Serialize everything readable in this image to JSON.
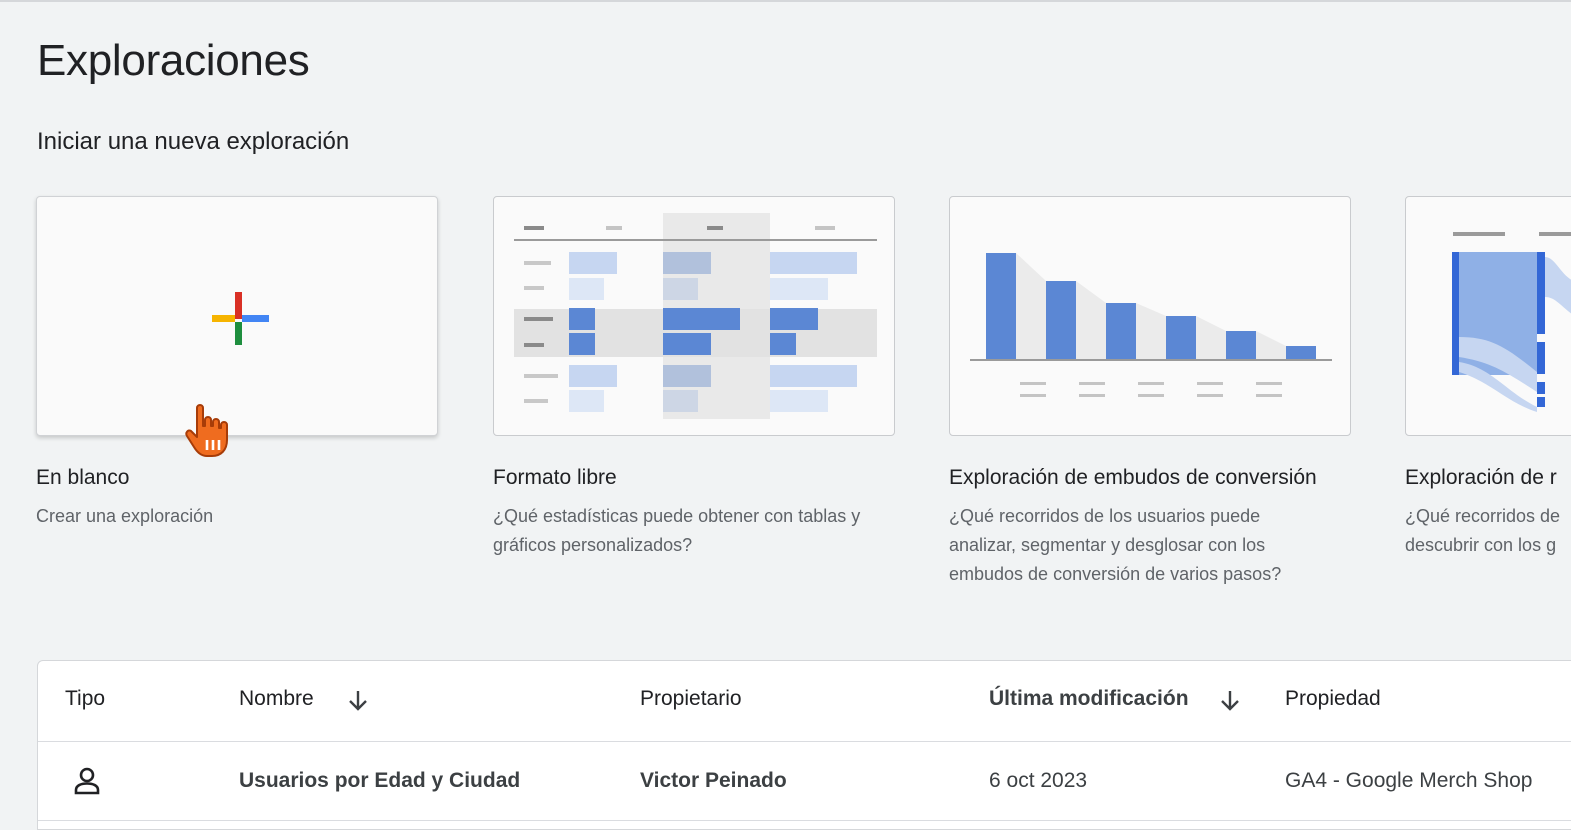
{
  "header": {
    "title": "Exploraciones",
    "section_title": "Iniciar una nueva exploración"
  },
  "templates": [
    {
      "title": "En blanco",
      "description": "Crear una exploración",
      "icon": "plus-icon"
    },
    {
      "title": "Formato libre",
      "description": "¿Qué estadísticas puede obtener con tablas y\ngráficos personalizados?",
      "icon": "free-form-illustration"
    },
    {
      "title": "Exploración de embudos de conversión",
      "description": "¿Qué recorridos de los usuarios puede\nanalizar, segmentar y desglosar con los\nembudos de conversión de varios pasos?",
      "icon": "funnel-illustration"
    },
    {
      "title": "Exploración de r",
      "description": "¿Qué recorridos de\ndescubrir con los g",
      "icon": "path-illustration"
    }
  ],
  "table": {
    "columns": [
      "Tipo",
      "Nombre",
      "Propietario",
      "Última modificación",
      "Propiedad"
    ],
    "rows": [
      {
        "type_icon": "person-icon",
        "name": "Usuarios por Edad y Ciudad",
        "owner": "Victor Peinado",
        "modified": "6 oct 2023",
        "property": "GA4 - Google Merch Shop"
      }
    ]
  },
  "colors": {
    "background": "#f1f3f4",
    "chart_blue": "#5b87d4",
    "chart_light_blue": "#c6d6f1",
    "google_red": "#d93025",
    "google_blue": "#4285f4",
    "google_yellow": "#f6b400",
    "google_green": "#1e8e3e"
  }
}
